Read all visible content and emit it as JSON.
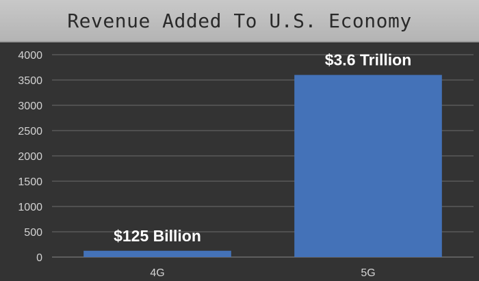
{
  "chart_data": {
    "type": "bar",
    "title": "Revenue Added To U.S. Economy",
    "categories": [
      "4G",
      "5G"
    ],
    "values": [
      125,
      3600
    ],
    "data_labels": [
      "$125 Billion",
      "$3.6 Trillion"
    ],
    "y_ticks": [
      0,
      500,
      1000,
      1500,
      2000,
      2500,
      3000,
      3500,
      4000
    ],
    "ylim": [
      0,
      4000
    ],
    "xlabel": "",
    "ylabel": "",
    "grid": true,
    "bar_color": "#4472b8",
    "background_color": "#333333"
  }
}
